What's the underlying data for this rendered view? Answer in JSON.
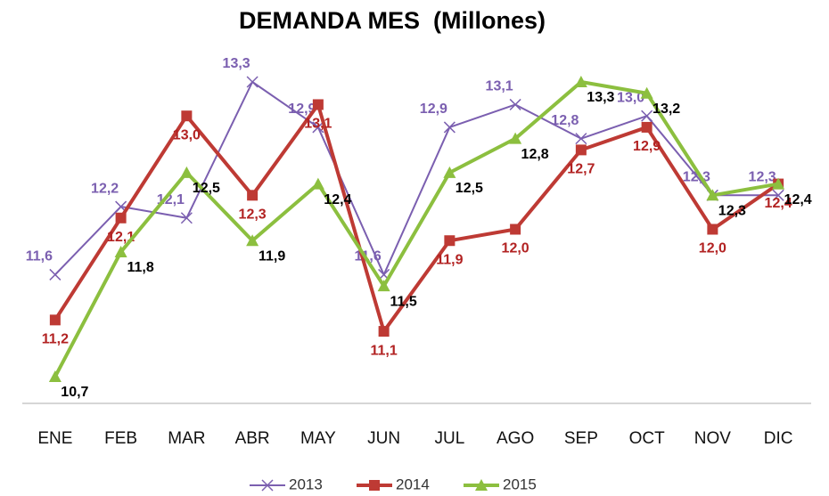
{
  "chart_data": {
    "type": "line",
    "title": "DEMANDA MES  (Millones)",
    "categories": [
      "ENE",
      "FEB",
      "MAR",
      "ABR",
      "MAY",
      "JUN",
      "JUL",
      "AGO",
      "SEP",
      "OCT",
      "NOV",
      "DIC"
    ],
    "series": [
      {
        "name": "2013",
        "color": "#7b5fb0",
        "label_color": "#7b5fb0",
        "values": [
          11.6,
          12.2,
          12.1,
          13.3,
          12.9,
          11.6,
          12.9,
          13.1,
          12.8,
          13.0,
          12.3,
          12.3
        ],
        "value_labels": [
          "11,6",
          "12,2",
          "12,1",
          "13,3",
          "12,9",
          "11,6",
          "12,9",
          "13,1",
          "12,8",
          "13,0",
          "12,3",
          "12,3"
        ]
      },
      {
        "name": "2014",
        "color": "#be3a34",
        "label_color": "#b22222",
        "values": [
          11.2,
          12.1,
          13.0,
          12.3,
          13.1,
          11.1,
          11.9,
          12.0,
          12.7,
          12.9,
          12.0,
          12.4
        ],
        "value_labels": [
          "11,2",
          "12,1",
          "13,0",
          "12,3",
          "13,1",
          "11,1",
          "11,9",
          "12,0",
          "12,7",
          "12,9",
          "12,0",
          "12,4"
        ]
      },
      {
        "name": "2015",
        "color": "#8cbf3f",
        "label_color": "#000000",
        "values": [
          10.7,
          11.8,
          12.5,
          11.9,
          12.4,
          11.5,
          12.5,
          12.8,
          13.3,
          13.2,
          12.3,
          12.4
        ],
        "value_labels": [
          "10,7",
          "11,8",
          "12,5",
          "11,9",
          "12,4",
          "11,5",
          "12,5",
          "12,8",
          "13,3",
          "13,2",
          "12,3",
          "12,4"
        ]
      }
    ]
  }
}
